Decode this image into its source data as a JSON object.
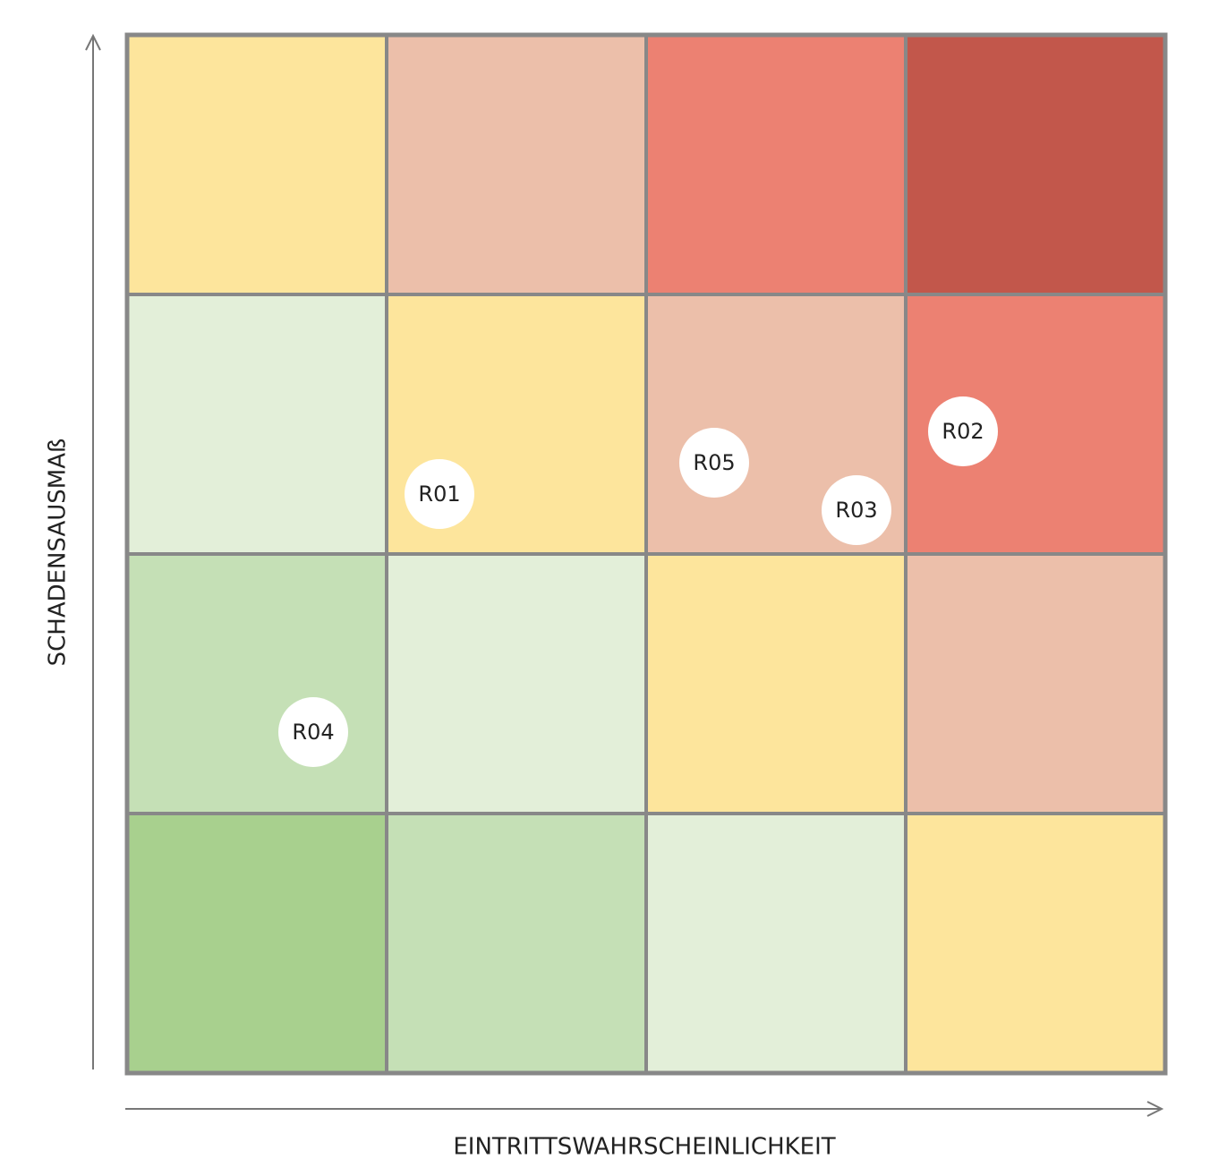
{
  "axes": {
    "y_label": "SCHADENSAUSMAß",
    "x_label": "EINTRITTSWAHRSCHEINLICHKEIT"
  },
  "risks": [
    {
      "label": "R01"
    },
    {
      "label": "R02"
    },
    {
      "label": "R03"
    },
    {
      "label": "R04"
    },
    {
      "label": "R05"
    }
  ]
}
